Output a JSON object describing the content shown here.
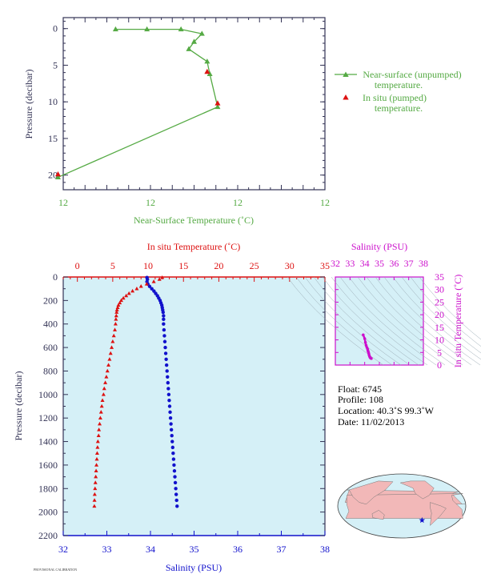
{
  "colors": {
    "green": "#55aa44",
    "red": "#dd1111",
    "blue": "#1111cc",
    "magenta": "#cc11cc",
    "axis_dark": "#333355",
    "panel_bg": "#d5f0f7",
    "land": "#f2b8b8",
    "ocean": "#d5f0f7"
  },
  "chart_data": [
    {
      "type": "line",
      "xlabel": "Near-Surface Temperature (˚C)",
      "ylabel": "Pressure (decibar)",
      "xlim": [
        11.6,
        12.6
      ],
      "ylim": [
        22,
        -1.5
      ],
      "x_tick_labels": [
        "12",
        "12",
        "12",
        "12"
      ],
      "y_ticks": [
        0,
        5,
        10,
        15,
        20
      ],
      "legend_placement": "right",
      "series": [
        {
          "name": "Near-surface (unpumped) temperature.",
          "marker": "triangle",
          "x": [
            11.8,
            11.92,
            12.05,
            12.13,
            12.1,
            12.08,
            12.15,
            12.16,
            12.19,
            11.58
          ],
          "y": [
            0.1,
            0.1,
            0.1,
            0.7,
            1.8,
            2.8,
            4.5,
            6.2,
            10.7,
            20.3
          ]
        },
        {
          "name": "In situ (pumped) temperature.",
          "marker": "triangle",
          "x": [
            12.15,
            12.19,
            11.58
          ],
          "y": [
            5.9,
            10.2,
            19.9
          ]
        }
      ]
    },
    {
      "type": "scatter",
      "ylabel": "Pressure (decibar)",
      "xlabel_bottom": "Salinity (PSU)",
      "xlabel_top": "In situ Temperature (˚C)",
      "salinity_lim": [
        32,
        38
      ],
      "temperature_lim": [
        -2,
        35
      ],
      "pressure_lim": [
        2200,
        0
      ],
      "salinity_ticks": [
        32,
        33,
        34,
        35,
        36,
        37,
        38
      ],
      "temperature_ticks": [
        0,
        5,
        10,
        15,
        20,
        25,
        30,
        35
      ],
      "pressure_ticks": [
        0,
        200,
        400,
        600,
        800,
        1000,
        1200,
        1400,
        1600,
        1800,
        2000,
        2200
      ],
      "series": [
        {
          "name": "In situ Temperature (˚C)",
          "marker": "triangle",
          "points": [
            [
              12.0,
              5
            ],
            [
              11.6,
              20
            ],
            [
              10.8,
              40
            ],
            [
              9.8,
              60
            ],
            [
              9.0,
              80
            ],
            [
              8.4,
              100
            ],
            [
              7.8,
              120
            ],
            [
              7.3,
              140
            ],
            [
              6.9,
              160
            ],
            [
              6.5,
              180
            ],
            [
              6.2,
              200
            ],
            [
              6.0,
              220
            ],
            [
              5.8,
              240
            ],
            [
              5.7,
              260
            ],
            [
              5.6,
              280
            ],
            [
              5.55,
              300
            ],
            [
              5.5,
              330
            ],
            [
              5.45,
              360
            ],
            [
              5.4,
              400
            ],
            [
              5.3,
              450
            ],
            [
              5.15,
              500
            ],
            [
              5.0,
              550
            ],
            [
              4.85,
              600
            ],
            [
              4.7,
              650
            ],
            [
              4.55,
              700
            ],
            [
              4.4,
              750
            ],
            [
              4.25,
              800
            ],
            [
              4.1,
              850
            ],
            [
              3.95,
              900
            ],
            [
              3.8,
              950
            ],
            [
              3.7,
              1000
            ],
            [
              3.55,
              1050
            ],
            [
              3.45,
              1100
            ],
            [
              3.35,
              1150
            ],
            [
              3.25,
              1200
            ],
            [
              3.15,
              1250
            ],
            [
              3.05,
              1300
            ],
            [
              3.0,
              1350
            ],
            [
              2.9,
              1400
            ],
            [
              2.85,
              1450
            ],
            [
              2.8,
              1500
            ],
            [
              2.75,
              1550
            ],
            [
              2.7,
              1600
            ],
            [
              2.65,
              1650
            ],
            [
              2.6,
              1700
            ],
            [
              2.55,
              1750
            ],
            [
              2.5,
              1800
            ],
            [
              2.45,
              1850
            ],
            [
              2.42,
              1900
            ],
            [
              2.4,
              1950
            ]
          ]
        },
        {
          "name": "Salinity (PSU)",
          "marker": "circle",
          "points": [
            [
              33.92,
              5
            ],
            [
              33.93,
              20
            ],
            [
              33.92,
              40
            ],
            [
              33.94,
              60
            ],
            [
              33.98,
              80
            ],
            [
              34.03,
              100
            ],
            [
              34.08,
              120
            ],
            [
              34.12,
              140
            ],
            [
              34.16,
              160
            ],
            [
              34.19,
              180
            ],
            [
              34.22,
              200
            ],
            [
              34.24,
              220
            ],
            [
              34.26,
              240
            ],
            [
              34.27,
              260
            ],
            [
              34.28,
              280
            ],
            [
              34.29,
              300
            ],
            [
              34.3,
              330
            ],
            [
              34.3,
              360
            ],
            [
              34.3,
              400
            ],
            [
              34.31,
              450
            ],
            [
              34.32,
              500
            ],
            [
              34.33,
              550
            ],
            [
              34.34,
              600
            ],
            [
              34.35,
              650
            ],
            [
              34.36,
              700
            ],
            [
              34.37,
              750
            ],
            [
              34.38,
              800
            ],
            [
              34.39,
              850
            ],
            [
              34.4,
              900
            ],
            [
              34.41,
              950
            ],
            [
              34.42,
              1000
            ],
            [
              34.43,
              1050
            ],
            [
              34.44,
              1100
            ],
            [
              34.45,
              1150
            ],
            [
              34.46,
              1200
            ],
            [
              34.47,
              1250
            ],
            [
              34.48,
              1300
            ],
            [
              34.49,
              1350
            ],
            [
              34.5,
              1400
            ],
            [
              34.51,
              1450
            ],
            [
              34.52,
              1500
            ],
            [
              34.53,
              1550
            ],
            [
              34.54,
              1600
            ],
            [
              34.55,
              1650
            ],
            [
              34.56,
              1700
            ],
            [
              34.57,
              1750
            ],
            [
              34.58,
              1800
            ],
            [
              34.59,
              1850
            ],
            [
              34.6,
              1900
            ],
            [
              34.61,
              1950
            ]
          ]
        }
      ]
    },
    {
      "type": "scatter",
      "xlabel": "Salinity (PSU)",
      "ylabel": "In situ Temperature (˚C)",
      "xlim": [
        32,
        38
      ],
      "ylim": [
        0,
        35
      ],
      "x_ticks": [
        32,
        33,
        34,
        35,
        36,
        37,
        38
      ],
      "y_ticks": [
        0,
        5,
        10,
        15,
        20,
        25,
        30,
        35
      ],
      "points": [
        [
          33.9,
          12.0
        ],
        [
          34.0,
          10.5
        ],
        [
          34.05,
          9.0
        ],
        [
          34.1,
          7.8
        ],
        [
          34.15,
          7.0
        ],
        [
          34.2,
          6.3
        ],
        [
          34.22,
          5.7
        ],
        [
          34.25,
          5.2
        ],
        [
          34.28,
          4.6
        ],
        [
          34.3,
          4.0
        ],
        [
          34.33,
          3.5
        ],
        [
          34.36,
          3.1
        ],
        [
          34.4,
          2.8
        ],
        [
          34.45,
          2.6
        ]
      ]
    }
  ],
  "info": {
    "float": "Float:  6745",
    "profile": "Profile:  108",
    "location": "Location:  40.3˚S  99.3˚W",
    "date": "Date:  11/02/2013"
  },
  "map": {
    "marker": "star",
    "land": [
      [
        [
          -10,
          35
        ],
        [
          10,
          40
        ],
        [
          30,
          45
        ],
        [
          40,
          45
        ],
        [
          40,
          10
        ],
        [
          20,
          5
        ],
        [
          10,
          5
        ],
        [
          -10,
          30
        ]
      ],
      [
        [
          -15,
          30
        ],
        [
          20,
          35
        ],
        [
          40,
          30
        ],
        [
          45,
          5
        ],
        [
          50,
          -15
        ],
        [
          35,
          -35
        ],
        [
          20,
          -35
        ],
        [
          10,
          -10
        ],
        [
          -15,
          15
        ]
      ],
      [
        [
          40,
          45
        ],
        [
          120,
          70
        ],
        [
          170,
          68
        ],
        [
          150,
          45
        ],
        [
          120,
          25
        ],
        [
          100,
          5
        ],
        [
          80,
          10
        ],
        [
          60,
          25
        ]
      ],
      [
        [
          115,
          -22
        ],
        [
          135,
          -12
        ],
        [
          150,
          -25
        ],
        [
          145,
          -38
        ],
        [
          115,
          -33
        ]
      ],
      [
        [
          -165,
          65
        ],
        [
          -130,
          70
        ],
        [
          -80,
          70
        ],
        [
          -60,
          50
        ],
        [
          -80,
          30
        ],
        [
          -100,
          20
        ],
        [
          -120,
          35
        ],
        [
          -125,
          50
        ]
      ],
      [
        [
          -80,
          10
        ],
        [
          -50,
          0
        ],
        [
          -35,
          -7
        ],
        [
          -50,
          -30
        ],
        [
          -70,
          -55
        ],
        [
          -75,
          -20
        ],
        [
          -80,
          -5
        ]
      ]
    ],
    "float_location": [
      -99.3,
      -40.3
    ]
  },
  "footer_note": "PROVISIONAL CALIBRATION"
}
